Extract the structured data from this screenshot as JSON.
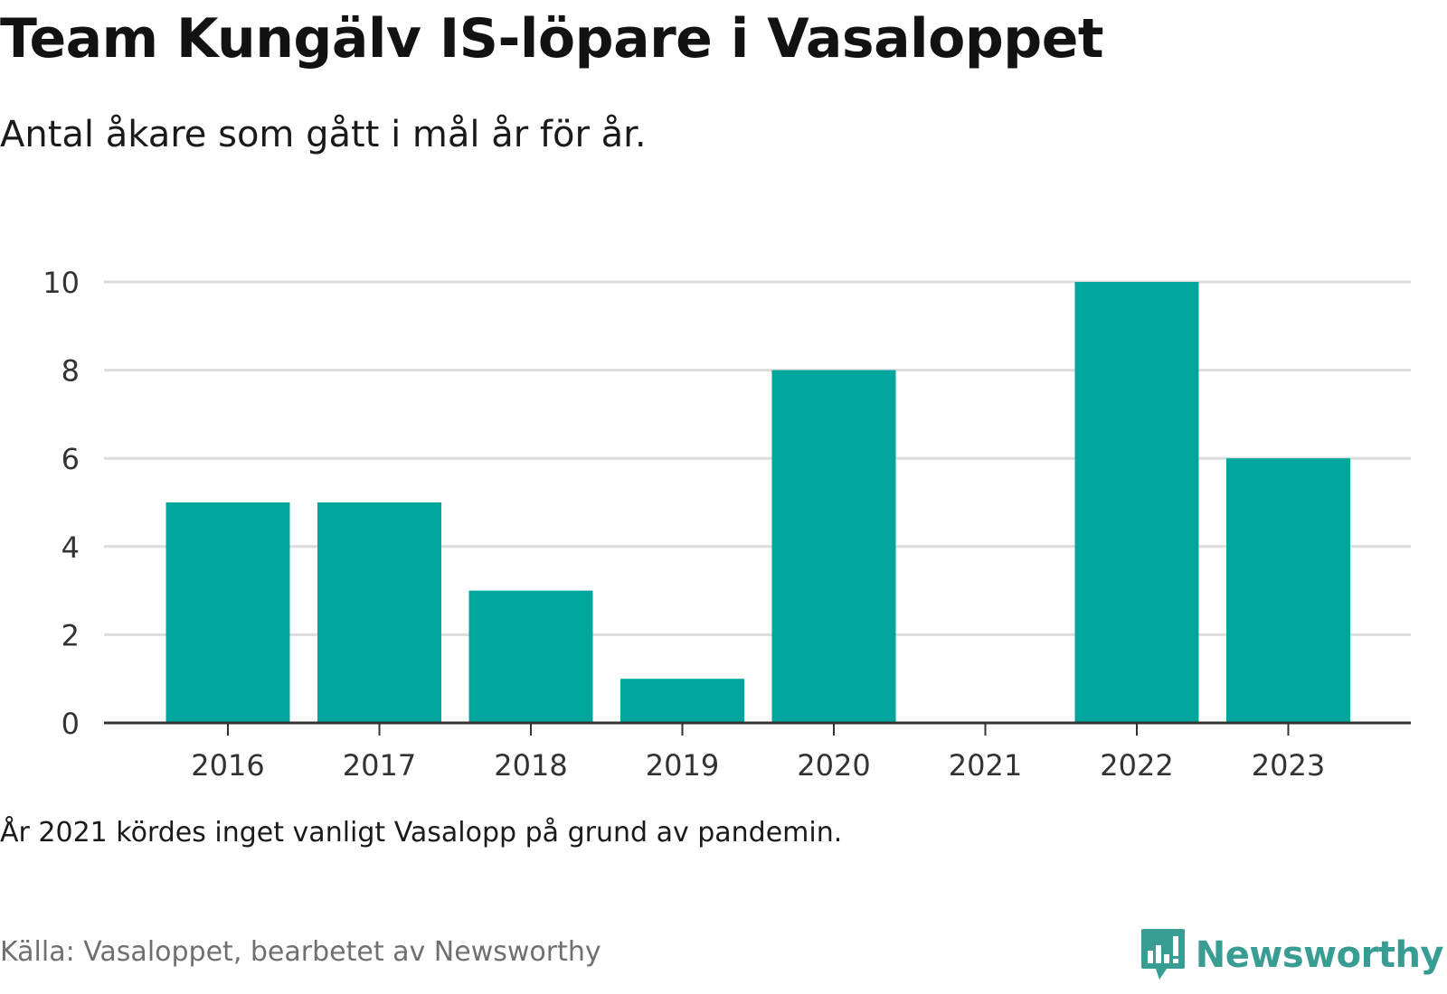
{
  "header": {
    "title": "Team Kungälv IS-löpare i Vasaloppet",
    "subtitle": "Antal åkare som gått i mål år för år."
  },
  "footer": {
    "note": "År 2021 kördes inget vanligt Vasalopp på grund av pandemin.",
    "source": "Källa: Vasaloppet, bearbetet av Newsworthy",
    "brand": "Newsworthy"
  },
  "colors": {
    "bar": "#00a59b",
    "grid": "#dcdcdc",
    "axis": "#333333",
    "brand": "#3a9d94"
  },
  "chart_data": {
    "type": "bar",
    "categories": [
      "2016",
      "2017",
      "2018",
      "2019",
      "2020",
      "2021",
      "2022",
      "2023"
    ],
    "values": [
      5,
      5,
      3,
      1,
      8,
      0,
      10,
      6
    ],
    "ylim": [
      0,
      10
    ],
    "yticks": [
      0,
      2,
      4,
      6,
      8,
      10
    ],
    "grid": true,
    "legend": "none"
  }
}
